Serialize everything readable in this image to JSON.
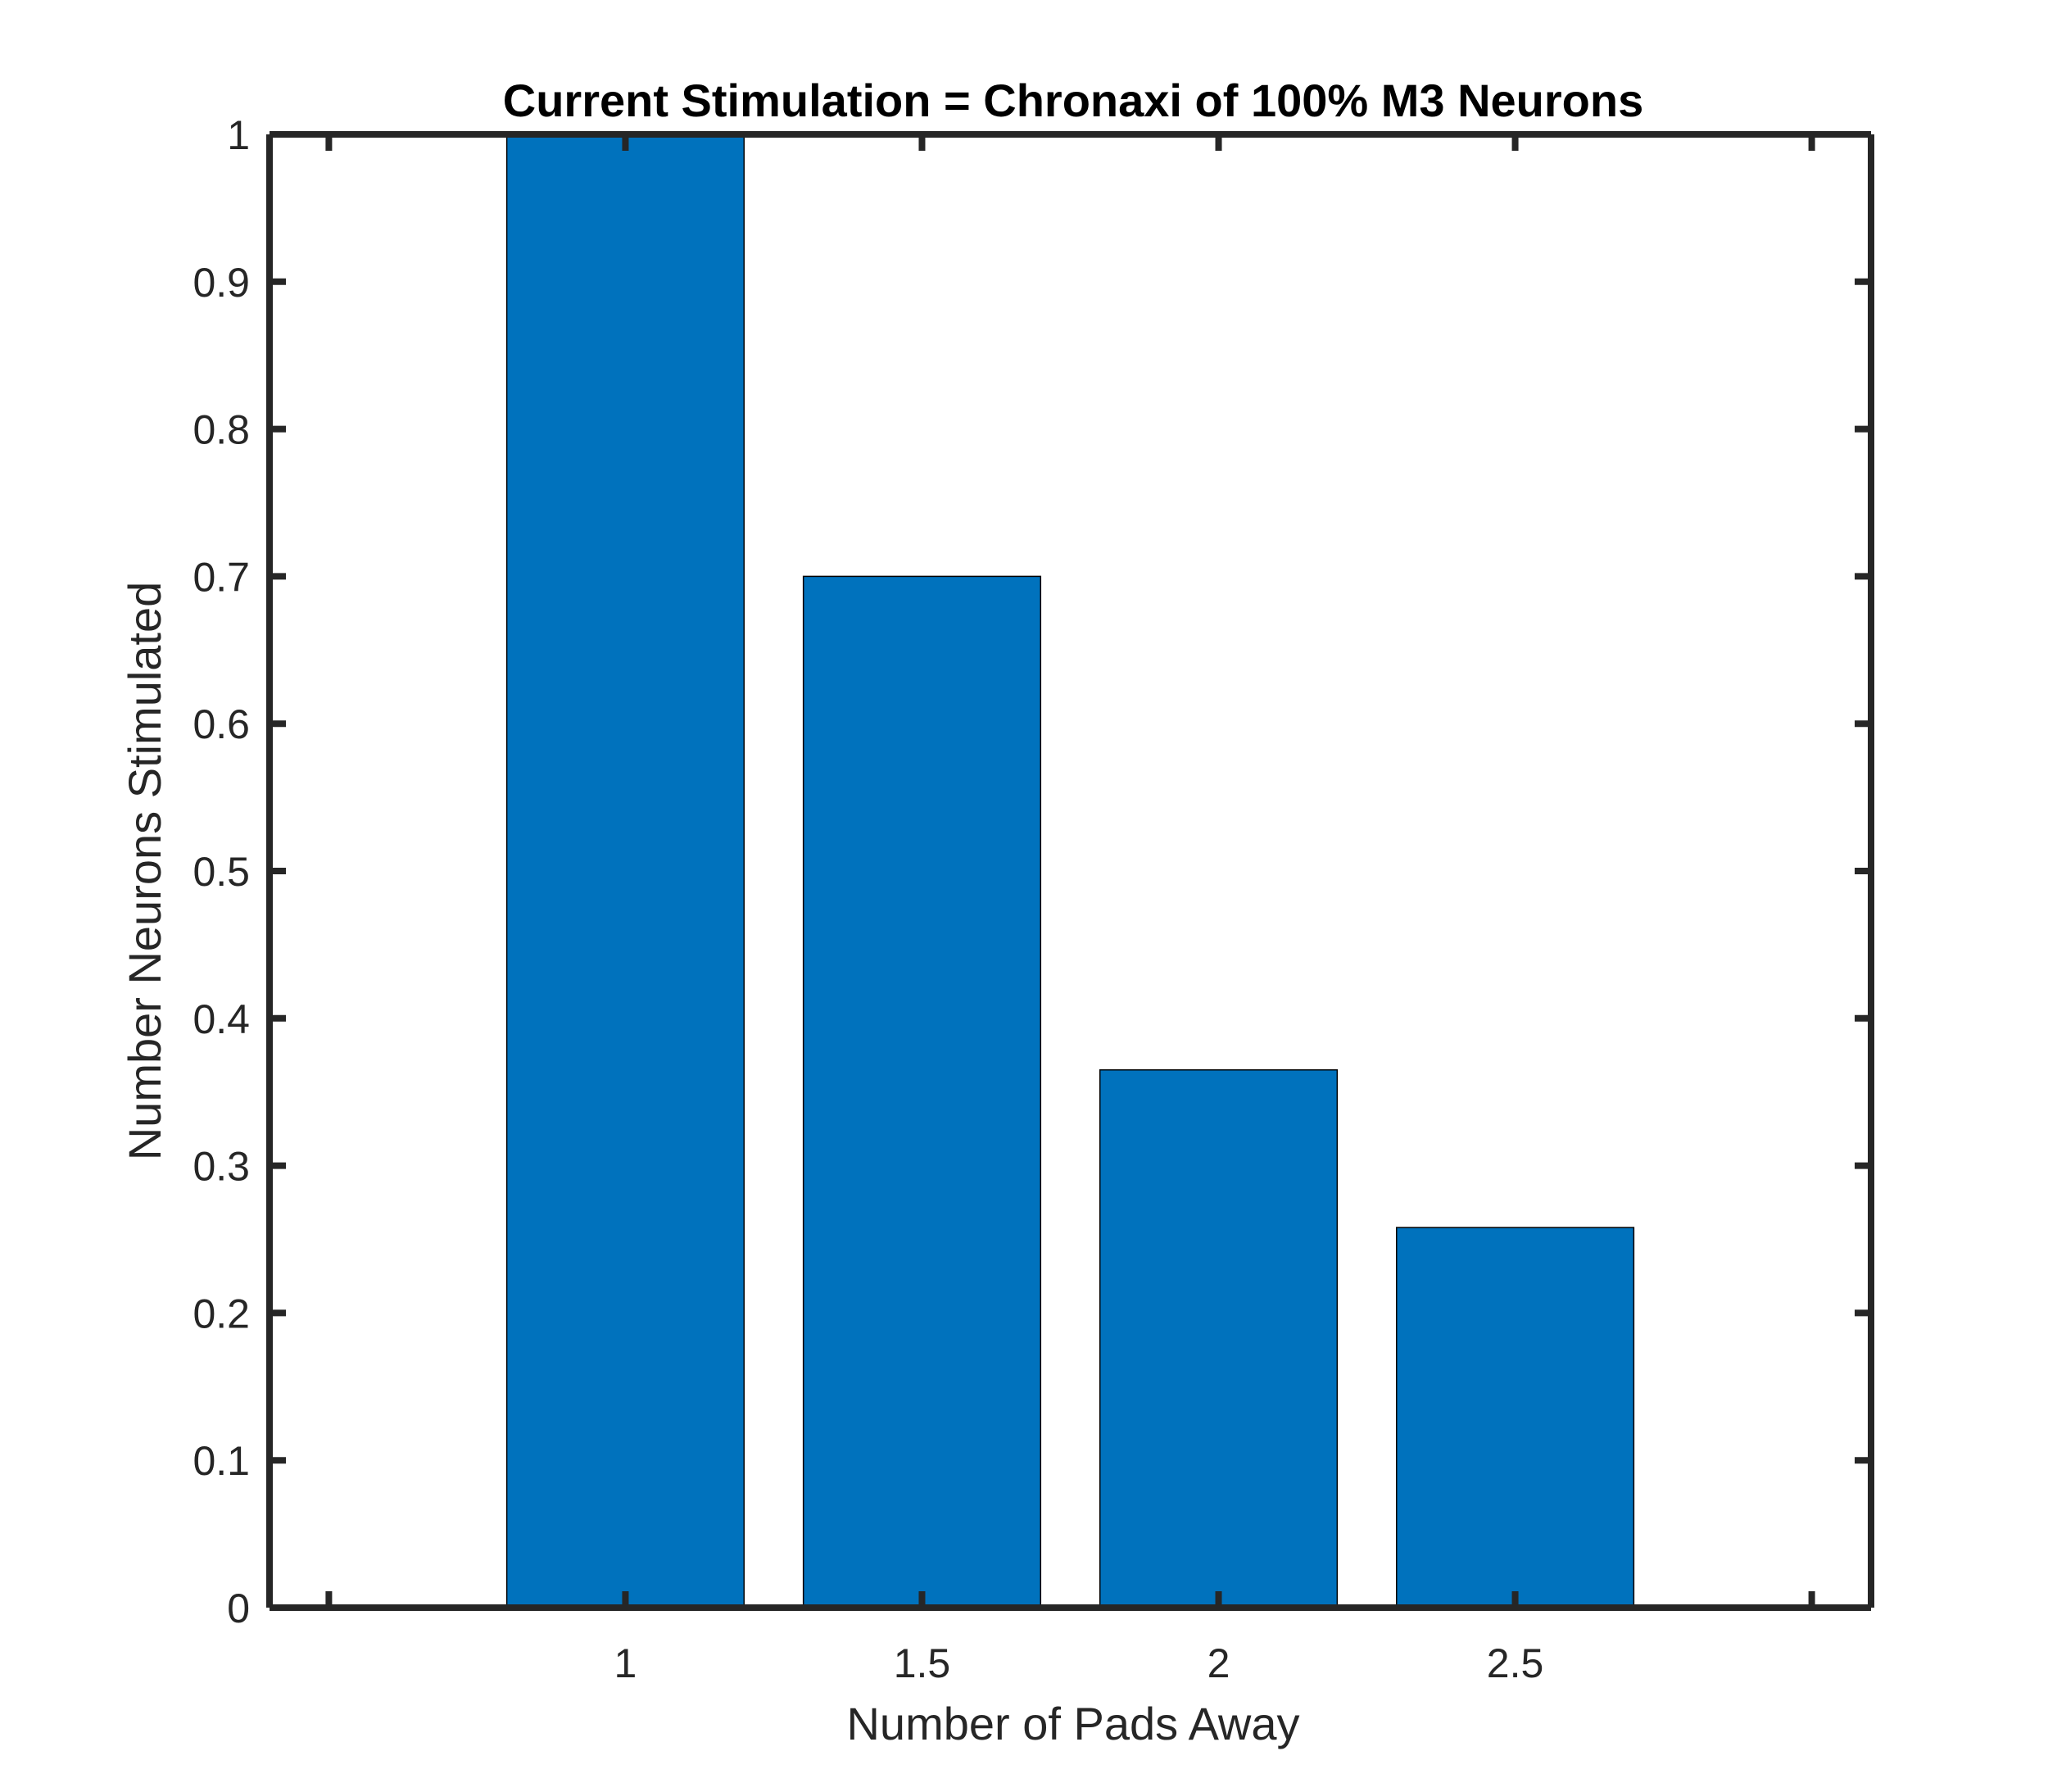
{
  "chart_data": {
    "type": "bar",
    "title": "Current Stimulation = Chronaxi of 100% M3 Neurons",
    "xlabel": "Number of Pads Away",
    "ylabel": "Number Neurons Stimulated",
    "categories": [
      "1",
      "1.5",
      "2",
      "2.5"
    ],
    "x": [
      1,
      1.5,
      2,
      2.5
    ],
    "values": [
      1.0,
      0.7,
      0.365,
      0.258
    ],
    "xlim": [
      0.4,
      3.1
    ],
    "ylim": [
      0,
      1
    ],
    "x_ticks": [
      0.5,
      1,
      1.5,
      2,
      2.5,
      3
    ],
    "x_tick_labels": [
      "",
      "1",
      "1.5",
      "2",
      "2.5",
      ""
    ],
    "y_ticks": [
      0,
      0.1,
      0.2,
      0.3,
      0.4,
      0.5,
      0.6,
      0.7,
      0.8,
      0.9,
      1
    ],
    "y_tick_labels": [
      "0",
      "0.1",
      "0.2",
      "0.3",
      "0.4",
      "0.5",
      "0.6",
      "0.7",
      "0.8",
      "0.9",
      "1"
    ],
    "bar_color": "#0072BD",
    "axis_color": "#262626",
    "grid": false,
    "box": true
  }
}
